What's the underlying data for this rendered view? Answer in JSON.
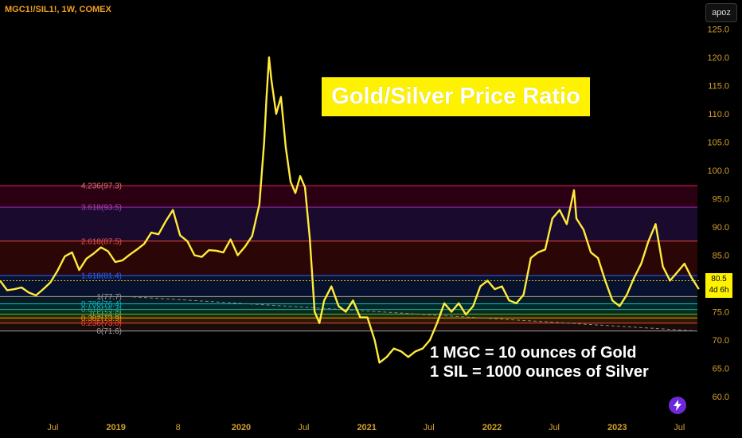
{
  "header": {
    "title": "MGC1!/SIL1!, 1W, COMEX"
  },
  "user_badge": "apoz",
  "price_tag": {
    "value": "80.5",
    "countdown": "4d 6h"
  },
  "colors": {
    "line": "#ffeb3b",
    "axis_text": "#d4a02a",
    "title_bg": "#fff200"
  },
  "chart_data": {
    "type": "line",
    "title": "Gold/Silver Price Ratio",
    "annotations": [
      "1 MGC = 10 ounces of Gold",
      "1 SIL = 1000 ounces of Silver"
    ],
    "y_ticks": [
      60.0,
      65.0,
      70.0,
      75.0,
      80.0,
      85.0,
      90.0,
      95.0,
      100.0,
      105.0,
      110.0,
      115.0,
      120.0,
      125.0
    ],
    "y_tick_labels": [
      "60.0",
      "65.0",
      "70.0",
      "75.0",
      "80.0",
      "85.0",
      "90.0",
      "95.0",
      "100.0",
      "105.0",
      "110.0",
      "115.0",
      "120.0",
      "125.0"
    ],
    "ylim": [
      57.0,
      127.0
    ],
    "x_tick_labels": [
      "Jul",
      "2019",
      "8",
      "2020",
      "Jul",
      "2021",
      "Jul",
      "2022",
      "Jul",
      "2023",
      "Jul"
    ],
    "x_tick_dates": [
      "2018-07-01",
      "2019-01-01",
      "2019-07-01",
      "2020-01-01",
      "2020-07-01",
      "2021-01-01",
      "2021-07-01",
      "2022-01-01",
      "2022-07-01",
      "2023-01-01",
      "2023-07-01"
    ],
    "x_range": [
      "2018-01-28",
      "2023-09-01"
    ],
    "fib_levels": [
      {
        "label": "4.236(97.3)",
        "value": 97.3,
        "label_color": "#e57373",
        "line_color": "#e91e63",
        "fill": "#2a0012"
      },
      {
        "label": "3.618(93.5)",
        "value": 93.5,
        "label_color": "#ab47bc",
        "line_color": "#9c27b0",
        "fill": "#1a0a2e"
      },
      {
        "label": "2.618(87.5)",
        "value": 87.5,
        "label_color": "#ef5350",
        "line_color": "#f44336",
        "fill": "#2b0606"
      },
      {
        "label": "1.618(81.4)",
        "value": 81.4,
        "label_color": "#2962ff",
        "line_color": "#2962ff",
        "fill": "#08122e"
      },
      {
        "label": "1(77.7)",
        "value": 77.7,
        "label_color": "#9e9e9e",
        "line_color": "#9e9e9e",
        "fill": "#0a1a1e"
      },
      {
        "label": "0.786(76.4)",
        "value": 76.4,
        "label_color": "#00bcd4",
        "line_color": "#00bcd4",
        "fill": "#002a2a"
      },
      {
        "label": "0.618(75.4)",
        "value": 75.4,
        "label_color": "#26a69a",
        "line_color": "#26a69a",
        "fill": "#0a2a1a"
      },
      {
        "label": "0.5(74.6)",
        "value": 74.6,
        "label_color": "#4caf50",
        "line_color": "#4caf50",
        "fill": "#1e2a0a"
      },
      {
        "label": "0.382(73.9)",
        "value": 73.9,
        "label_color": "#ff9800",
        "line_color": "#ff9800",
        "fill": "#2a1a00"
      },
      {
        "label": "0.236(73.0)",
        "value": 73.0,
        "label_color": "#f44336",
        "line_color": "#f44336",
        "fill": "#1a0a0a"
      },
      {
        "label": "0(71.6)",
        "value": 71.6,
        "label_color": "#9e9e9e",
        "line_color": "#9e9e9e",
        "fill": "none"
      }
    ],
    "fib_range": [
      "2019-05-01",
      "2023-09-01"
    ],
    "current_value": 80.5,
    "series": [
      {
        "x": [
          "2018-01-28",
          "2018-02-18",
          "2018-03-11",
          "2018-04-01",
          "2018-04-22",
          "2018-05-13",
          "2018-06-03",
          "2018-06-24",
          "2018-07-15",
          "2018-08-05",
          "2018-08-26",
          "2018-09-16",
          "2018-10-07",
          "2018-10-28",
          "2018-11-18",
          "2018-12-09",
          "2018-12-30",
          "2019-01-20",
          "2019-02-10",
          "2019-03-03",
          "2019-03-24",
          "2019-04-14",
          "2019-05-05",
          "2019-05-26",
          "2019-06-16",
          "2019-07-07",
          "2019-07-28",
          "2019-08-18",
          "2019-09-08",
          "2019-09-29",
          "2019-10-20",
          "2019-11-10",
          "2019-12-01",
          "2019-12-22",
          "2020-01-12",
          "2020-02-02",
          "2020-02-23",
          "2020-03-08",
          "2020-03-15",
          "2020-03-22",
          "2020-03-29",
          "2020-04-12",
          "2020-04-26",
          "2020-05-10",
          "2020-05-24",
          "2020-06-07",
          "2020-06-21",
          "2020-07-05",
          "2020-07-19",
          "2020-08-02",
          "2020-08-16",
          "2020-08-30",
          "2020-09-20",
          "2020-10-11",
          "2020-11-01",
          "2020-11-22",
          "2020-12-13",
          "2021-01-03",
          "2021-01-24",
          "2021-02-07",
          "2021-02-28",
          "2021-03-21",
          "2021-04-11",
          "2021-05-02",
          "2021-05-23",
          "2021-06-13",
          "2021-07-04",
          "2021-07-25",
          "2021-08-15",
          "2021-09-05",
          "2021-09-26",
          "2021-10-17",
          "2021-11-07",
          "2021-11-28",
          "2021-12-19",
          "2022-01-09",
          "2022-01-30",
          "2022-02-20",
          "2022-03-13",
          "2022-04-03",
          "2022-04-24",
          "2022-05-15",
          "2022-06-05",
          "2022-06-26",
          "2022-07-17",
          "2022-08-07",
          "2022-08-28",
          "2022-09-04",
          "2022-09-25",
          "2022-10-16",
          "2022-11-06",
          "2022-11-27",
          "2022-12-18",
          "2023-01-08",
          "2023-01-29",
          "2023-02-19",
          "2023-03-12",
          "2023-04-02",
          "2023-04-23",
          "2023-05-14",
          "2023-06-04",
          "2023-06-25",
          "2023-07-16",
          "2023-08-06",
          "2023-08-27"
        ],
        "values": [
          80.5,
          78.8,
          79.0,
          79.3,
          78.4,
          77.9,
          79.0,
          80.2,
          82.3,
          84.8,
          85.5,
          82.4,
          84.4,
          85.3,
          86.4,
          85.7,
          83.8,
          84.1,
          85.1,
          86.0,
          87.0,
          89.0,
          88.7,
          91.0,
          93.0,
          88.5,
          87.5,
          85.0,
          84.7,
          85.9,
          85.8,
          85.5,
          87.8,
          85.0,
          86.5,
          88.4,
          94.0,
          105.0,
          113.0,
          120.0,
          116.0,
          110.0,
          113.0,
          104.0,
          98.0,
          96.0,
          99.0,
          97.0,
          88.0,
          75.0,
          73.0,
          77.0,
          79.5,
          76.0,
          75.0,
          77.0,
          74.0,
          74.0,
          70.0,
          66.0,
          67.0,
          68.5,
          68.0,
          67.0,
          68.0,
          68.5,
          70.0,
          73.0,
          76.5,
          75.0,
          76.5,
          74.5,
          76.0,
          79.5,
          80.5,
          79.0,
          79.5,
          77.0,
          76.5,
          78.0,
          84.5,
          85.5,
          86.0,
          91.5,
          93.0,
          90.5,
          96.5,
          91.5,
          89.5,
          85.5,
          84.5,
          80.5,
          77.0,
          76.0,
          78.0,
          81.0,
          83.5,
          87.5,
          90.5,
          83.0,
          80.5,
          82.0,
          83.5,
          81.0,
          79.0
        ]
      }
    ]
  }
}
